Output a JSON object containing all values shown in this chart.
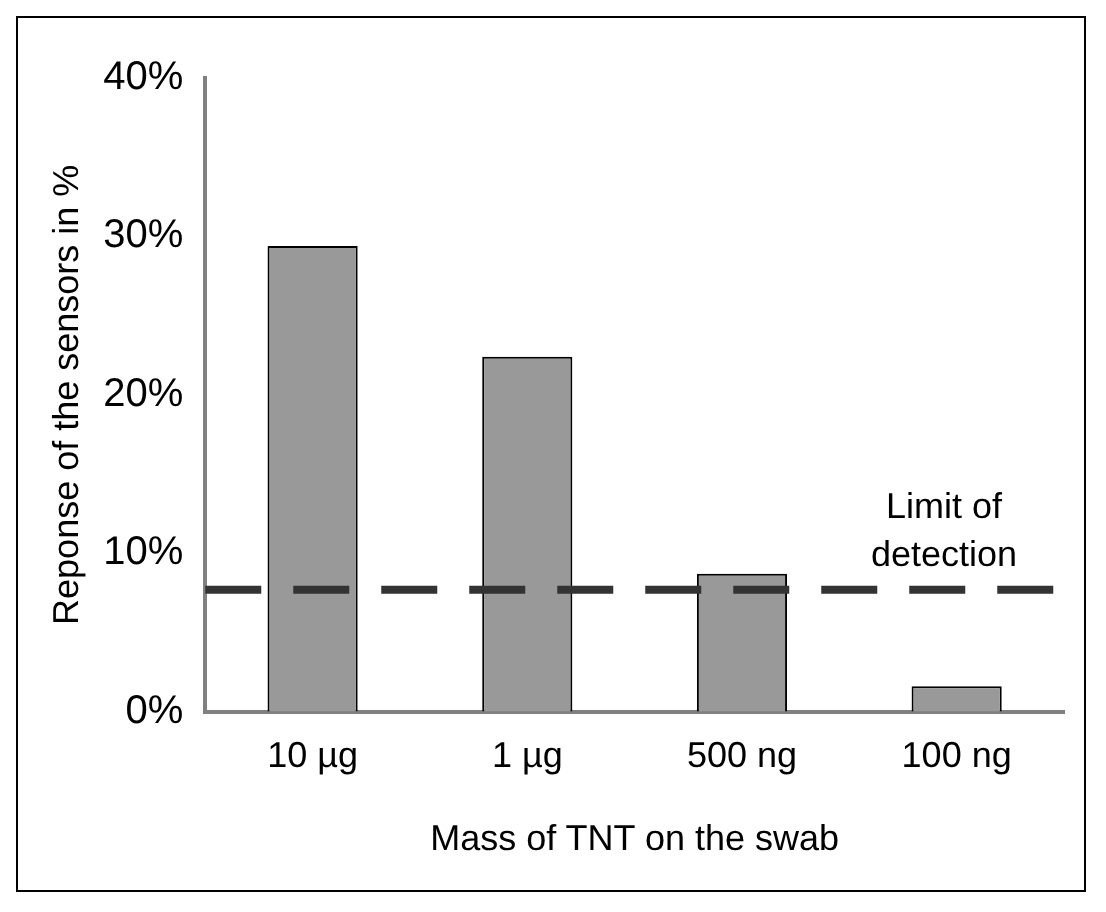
{
  "chart_data": {
    "type": "bar",
    "xlabel": "Mass of TNT on the swab",
    "ylabel": "Reponse of the sensors in %",
    "categories": [
      "10 µg",
      "1 µg",
      "500 ng",
      "100 ng"
    ],
    "values": [
      29.4,
      22.4,
      8.7,
      1.6
    ],
    "color": "#999999",
    "ylim": [
      0,
      40
    ],
    "yticks": [
      {
        "value": 0,
        "label": "0%"
      },
      {
        "value": 10,
        "label": "10%"
      },
      {
        "value": 20,
        "label": "20%"
      },
      {
        "value": 30,
        "label": "30%"
      },
      {
        "value": 40,
        "label": "40%"
      }
    ],
    "grid": false,
    "legend": false,
    "ref_lines": [
      {
        "axis": "y",
        "value": 7.7,
        "label": "Limit of\ndetection",
        "color": "#333333",
        "line_style": "dashed"
      }
    ]
  }
}
